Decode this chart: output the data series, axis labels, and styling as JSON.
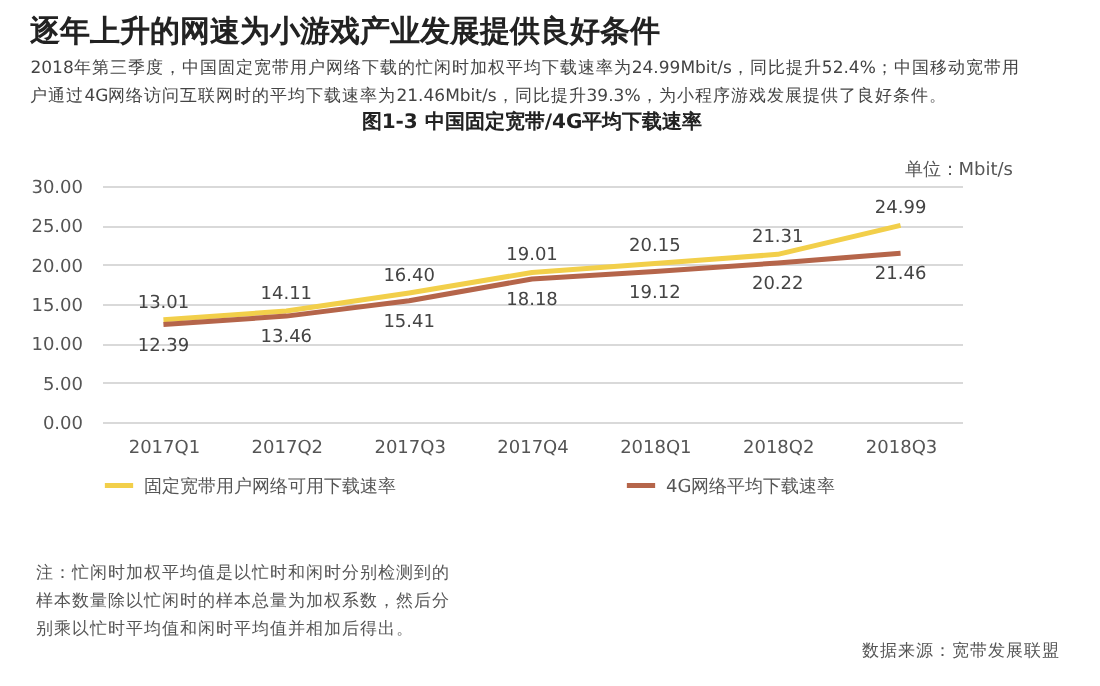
{
  "chart_data": {
    "type": "line",
    "title": "逐年上升的网速为小游戏产业发展提供良好条件",
    "subtitle": "2018年第三季度，中国固定宽带用户网络下载的忙闲时加权平均下载速率为24.99Mbit/s，同比提升52.4%；中国移动宽带用户通过4G网络访问互联网时的平均下载速率为21.46Mbit/s，同比提升39.3%，为小程序游戏发展提供了良好条件。",
    "ylabel": "单位：Mbit/s",
    "categories": [
      "2017Q1",
      "2017Q2",
      "2017Q3",
      "2017Q4",
      "2018Q1",
      "2018Q2",
      "2018Q3"
    ],
    "series": [
      {
        "name": "固定宽带用户网络可用下载速率",
        "color": "#f2cf4a",
        "values": [
          13.01,
          14.11,
          16.4,
          19.01,
          20.15,
          21.31,
          24.99
        ],
        "value_labels": [
          "13.01",
          "14.11",
          "16.40",
          "19.01",
          "20.15",
          "21.31",
          "24.99"
        ]
      },
      {
        "name": "4G网络平均下载速率",
        "color": "#b5654a",
        "values": [
          12.39,
          13.46,
          15.41,
          18.18,
          19.12,
          20.22,
          21.46
        ],
        "value_labels": [
          "12.39",
          "13.46",
          "15.41",
          "18.18",
          "19.12",
          "20.22",
          "21.46"
        ]
      }
    ],
    "ylim": [
      0,
      30
    ],
    "yticks": [
      {
        "value": 0,
        "label": "0.00"
      },
      {
        "value": 5,
        "label": "5.00"
      },
      {
        "value": 10,
        "label": "10.00"
      },
      {
        "value": 15,
        "label": "15.00"
      },
      {
        "value": 20,
        "label": "20.00"
      },
      {
        "value": 25,
        "label": "25.00"
      },
      {
        "value": 30,
        "label": "30.00"
      }
    ],
    "grid": "y",
    "legend": "bottom",
    "annotations": [
      "图1-3 中国固定宽带/4G平均下载速率",
      "注：忙闲时加权平均值是以忙时和闲时分别检测到的样本数量除以忙闲时的样本总量为加权系数，然后分别乘以忙时平均值和闲时平均值并相加后得出。",
      "数据来源：宽带发展联盟"
    ]
  }
}
